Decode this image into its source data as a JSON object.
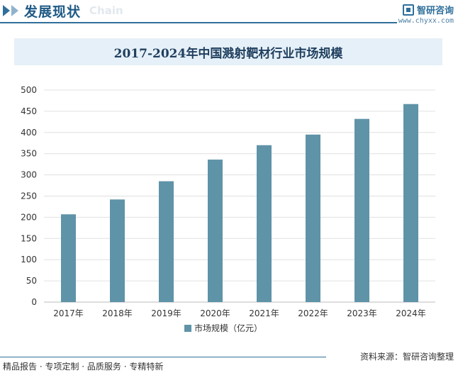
{
  "header": {
    "section_title": "发展现状",
    "section_sub": "Chain",
    "brand_name": "智研咨询",
    "brand_url": "www.chyxx.com"
  },
  "colors": {
    "bar": "#5f93a8",
    "header_blue": "#2f6f9a",
    "title_band": "#e6f0f8",
    "grid": "#e0e0e0"
  },
  "chart_data": {
    "type": "bar",
    "title": "2017-2024年中国溅射靶材行业市场规模",
    "categories": [
      "2017年",
      "2018年",
      "2019年",
      "2020年",
      "2021年",
      "2022年",
      "2023年",
      "2024年"
    ],
    "series": [
      {
        "name": "市场规模（亿元）",
        "values": [
          207,
          242,
          285,
          336,
          370,
          395,
          432,
          467
        ]
      }
    ],
    "ylim": [
      0,
      500
    ],
    "yticks": [
      0,
      50,
      100,
      150,
      200,
      250,
      300,
      350,
      400,
      450,
      500
    ],
    "grid": true,
    "legend": "bottom-center"
  },
  "footer": {
    "tagline": "精品报告 · 专项定制 · 品质服务 · 专精特新",
    "source": "资料来源：智研咨询整理"
  }
}
